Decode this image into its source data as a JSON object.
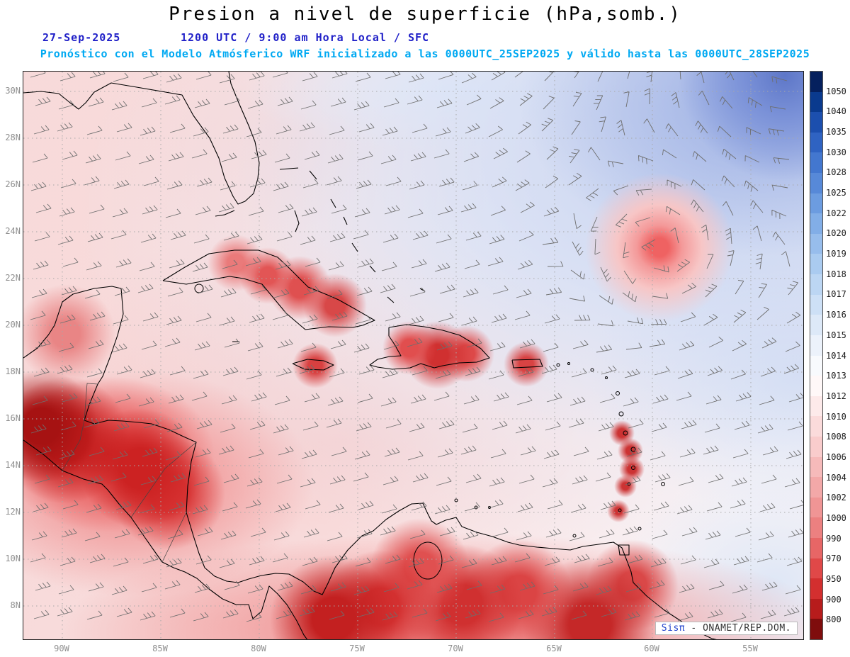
{
  "header": {
    "title": "Presion a nivel de superficie (hPa,somb.)",
    "date_label": "27-Sep-2025",
    "time_label": "1200 UTC / 9:00 am Hora Local / SFC",
    "forecast_line": "Pronóstico con el Modelo Atmósferico WRF inicializado a las 0000UTC_25SEP2025 y válido hasta las  0000UTC_28SEP2025"
  },
  "axes": {
    "lat_labels": [
      "30N",
      "28N",
      "26N",
      "24N",
      "22N",
      "20N",
      "18N",
      "16N",
      "14N",
      "12N",
      "10N",
      "8N"
    ],
    "lon_labels": [
      "90W",
      "85W",
      "80W",
      "75W",
      "70W",
      "65W",
      "60W",
      "55W"
    ]
  },
  "colorbar": {
    "unit": "hPa",
    "values": [
      "1050",
      "1040",
      "1035",
      "1030",
      "1028",
      "1025",
      "1022",
      "1020",
      "1019",
      "1018",
      "1017",
      "1016",
      "1015",
      "1014",
      "1013",
      "1012",
      "1010",
      "1008",
      "1006",
      "1004",
      "1002",
      "1000",
      "990",
      "970",
      "950",
      "900",
      "800"
    ],
    "cell_colors": [
      "#05205e",
      "#0a3a8e",
      "#1c4fae",
      "#2f63c2",
      "#4377cf",
      "#5789d8",
      "#6c9ce0",
      "#82aee7",
      "#97bdec",
      "#aacbf0",
      "#bcd6f3",
      "#cde0f6",
      "#dde9f8",
      "#ecf2fb",
      "#f8fafd",
      "#fff8f8",
      "#fdeaea",
      "#fbdbdb",
      "#f9cccc",
      "#f6baba",
      "#f3a8a8",
      "#f09595",
      "#ec8080",
      "#e76666",
      "#e04848",
      "#d32f2f",
      "#b71c1c",
      "#7f0d0d"
    ]
  },
  "attribution": {
    "system_label": "Sisπ",
    "source_label": " - ONAMET/REP.DOM."
  },
  "chart_data": {
    "type": "heatmap",
    "title": "Presion a nivel de superficie (hPa,somb.)",
    "valid": "27-Sep-2025 1200 UTC / 9:00 am Hora Local / SFC",
    "model_run": "WRF inicializado 0000UTC_25SEP2025, válido hasta 0000UTC_28SEP2025",
    "units": "hPa",
    "lat_ticks": [
      "30N",
      "28N",
      "26N",
      "24N",
      "22N",
      "20N",
      "18N",
      "16N",
      "14N",
      "12N",
      "10N",
      "8N"
    ],
    "lon_ticks": [
      "90W",
      "85W",
      "80W",
      "75W",
      "70W",
      "65W",
      "60W",
      "55W"
    ],
    "levels": [
      800,
      900,
      950,
      970,
      990,
      1000,
      1002,
      1004,
      1006,
      1008,
      1010,
      1012,
      1013,
      1014,
      1015,
      1016,
      1017,
      1018,
      1019,
      1020,
      1022,
      1025,
      1028,
      1030,
      1035,
      1040,
      1050
    ],
    "features": [
      {
        "name": "cyclonic-circulation",
        "approx_location": "59W 23.5N"
      },
      {
        "name": "low-pressure-shading",
        "approx_location": "Central America and northern South America"
      },
      {
        "name": "high-pressure-shading",
        "approx_location": "northeast corner of map"
      }
    ]
  }
}
